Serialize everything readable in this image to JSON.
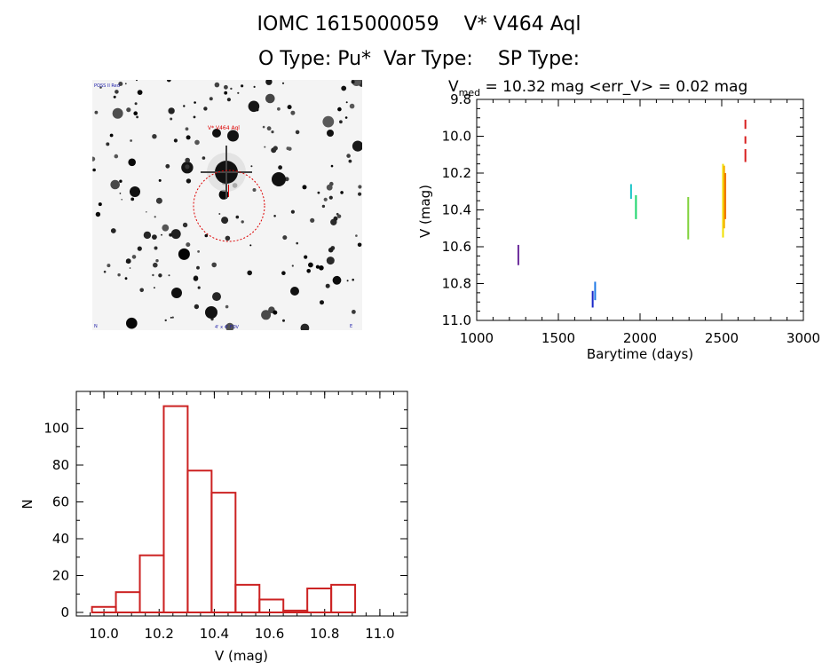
{
  "header": {
    "title_line1": "IOMC 1615000059    V* V464 Aql",
    "title_line2": "O Type: Pu*  Var Type:    SP Type:"
  },
  "image_panel": {
    "star_label": "V* V464 Aql",
    "corner_top_left": "POSS II Red",
    "corner_bottom_center": "4' x 4' FOV",
    "corner_bottom_left": "N",
    "corner_bottom_right": "E",
    "marker_color": "#dd0000"
  },
  "chart_data": [
    {
      "type": "scatter",
      "title_prefix": "V",
      "title_subscript": "med",
      "title_rest": " = 10.32 mag <err_V> = 0.02 mag",
      "xlabel": "Barytime (days)",
      "ylabel": "V (mag)",
      "xlim": [
        1000,
        3000
      ],
      "ylim": [
        11.0,
        9.8
      ],
      "y_inverted": true,
      "xticks": [
        1000,
        1500,
        2000,
        2500,
        3000
      ],
      "yticks": [
        "9.8",
        "10.0",
        "10.2",
        "10.4",
        "10.6",
        "10.8",
        "11.0"
      ],
      "grid": false,
      "clusters": [
        {
          "x": [
            1255,
            1255
          ],
          "y": [
            10.59,
            10.7
          ],
          "color": "#6a2a9a"
        },
        {
          "x": [
            1710,
            1713
          ],
          "y": [
            10.84,
            10.93
          ],
          "color": "#1a28c8"
        },
        {
          "x": [
            1725,
            1728
          ],
          "y": [
            10.79,
            10.89
          ],
          "color": "#1e78e6"
        },
        {
          "x": [
            1945,
            1948
          ],
          "y": [
            10.26,
            10.34
          ],
          "color": "#19c4c8"
        },
        {
          "x": [
            1975,
            1980
          ],
          "y": [
            10.32,
            10.45
          ],
          "color": "#1bd66a"
        },
        {
          "x": [
            2295,
            2298
          ],
          "y": [
            10.33,
            10.56
          ],
          "color": "#7fd23a"
        },
        {
          "x": [
            2508,
            2512
          ],
          "y": [
            10.15,
            10.55
          ],
          "color": "#f0e000"
        },
        {
          "x": [
            2515,
            2520
          ],
          "y": [
            10.16,
            10.5
          ],
          "color": "#f7b000"
        },
        {
          "x": [
            2522,
            2528
          ],
          "y": [
            10.2,
            10.45
          ],
          "color": "#f07800"
        },
        {
          "x": [
            2645,
            2648
          ],
          "y": [
            9.91,
            9.96
          ],
          "color": "#d81e1e"
        },
        {
          "x": [
            2645,
            2648
          ],
          "y": [
            10.0,
            10.04
          ],
          "color": "#d81e1e"
        },
        {
          "x": [
            2645,
            2648
          ],
          "y": [
            10.07,
            10.14
          ],
          "color": "#d81e1e"
        }
      ]
    },
    {
      "type": "bar",
      "xlabel": "V (mag)",
      "ylabel": "N",
      "xlim": [
        9.9,
        11.1
      ],
      "ylim": [
        0,
        120
      ],
      "xticks": [
        "10.0",
        "10.2",
        "10.4",
        "10.6",
        "10.8",
        "11.0"
      ],
      "yticks": [
        "0",
        "20",
        "40",
        "60",
        "80",
        "100"
      ],
      "bin_width": 0.0867,
      "bin_starts": [
        9.9567,
        10.0434,
        10.1301,
        10.2168,
        10.3035,
        10.3902,
        10.4769,
        10.5636,
        10.6503,
        10.737,
        10.8237
      ],
      "values": [
        3,
        11,
        31,
        112,
        77,
        65,
        15,
        7,
        1,
        13,
        15
      ],
      "bar_color": "#cc2222",
      "grid": false
    }
  ]
}
